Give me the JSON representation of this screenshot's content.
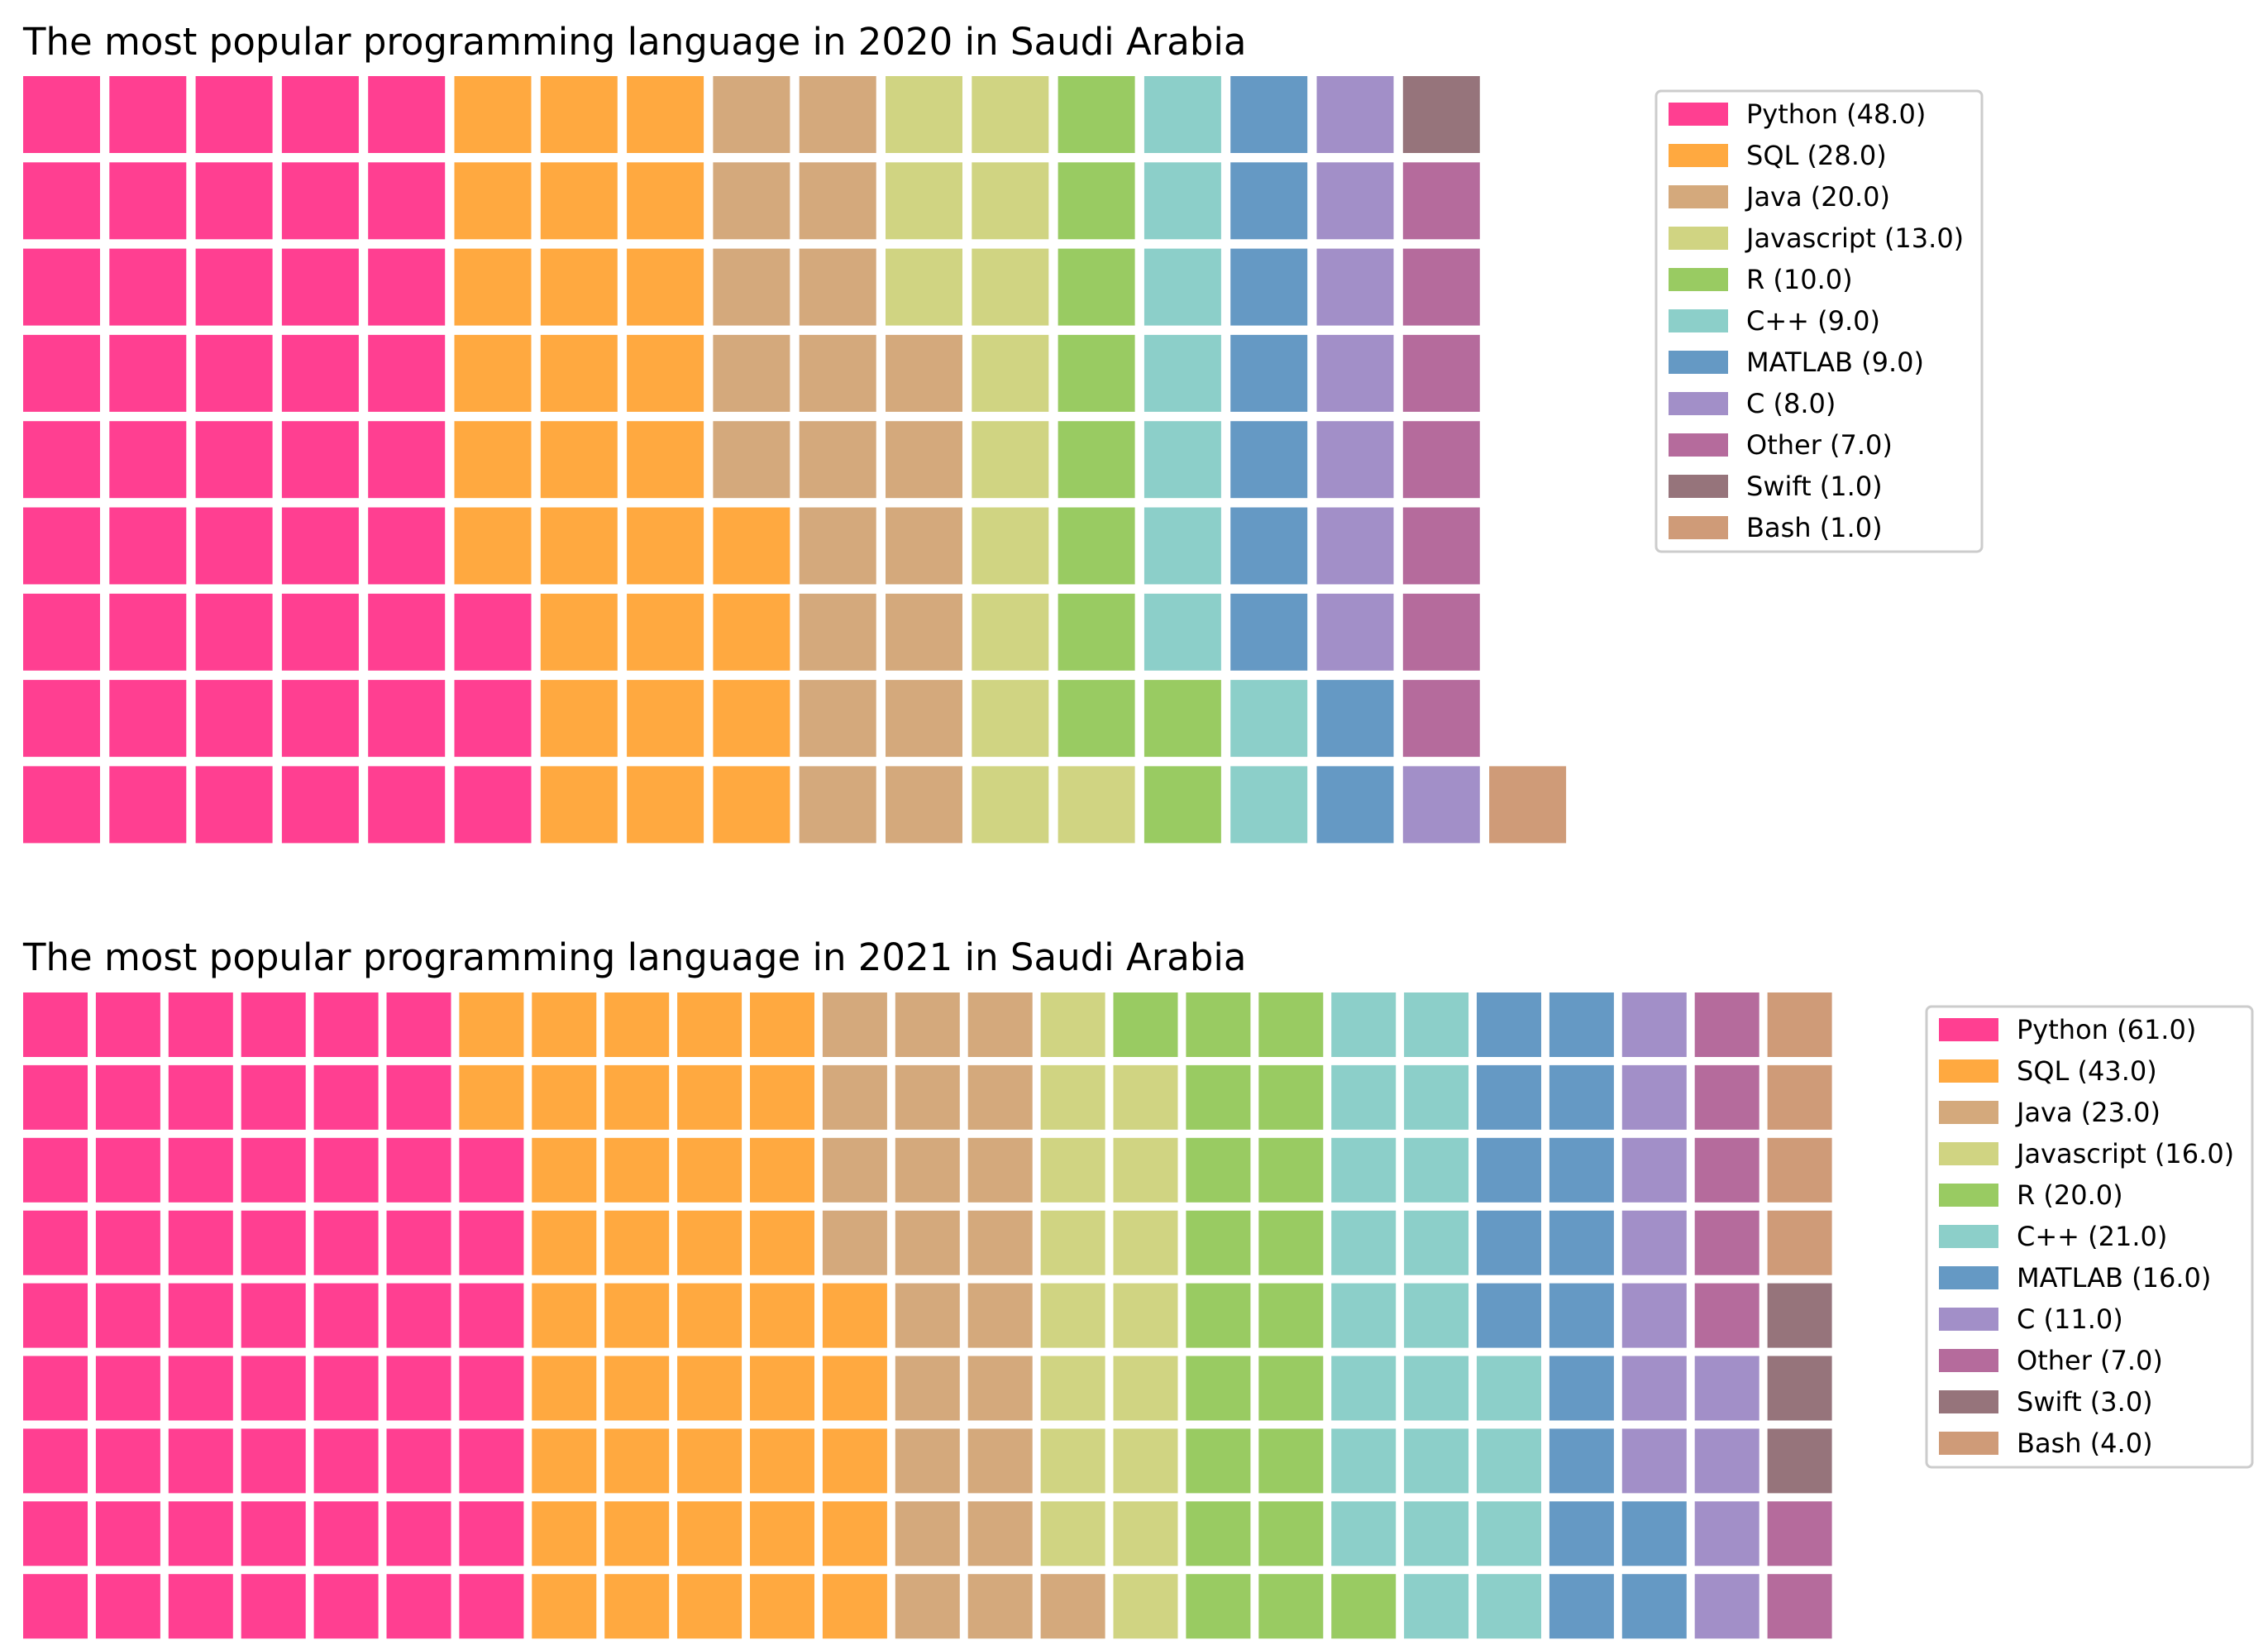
{
  "chart_data": [
    {
      "type": "waffle",
      "title": "The most popular programming language in 2020 in Saudi Arabia",
      "rows": 9,
      "columns": 18,
      "fill_order": "column-major, bottom-to-top, left-to-right",
      "legend_position": "upper-right, outside plot",
      "categories": [
        "Python",
        "SQL",
        "Java",
        "Javascript",
        "R",
        "C++",
        "MATLAB",
        "C",
        "Other",
        "Swift",
        "Bash"
      ],
      "values": [
        48.0,
        28.0,
        20.0,
        13.0,
        10.0,
        9.0,
        9.0,
        8.0,
        7.0,
        1.0,
        1.0
      ],
      "legend_labels": [
        "Python (48.0)",
        "SQL (28.0)",
        "Java (20.0)",
        "Javascript (13.0)",
        "R (10.0)",
        "C++ (9.0)",
        "MATLAB (9.0)",
        "C (8.0)",
        "Other (7.0)",
        "Swift (1.0)",
        "Bash (1.0)"
      ],
      "colors": [
        "#ff3f91",
        "#ffa940",
        "#d4a97c",
        "#d0d482",
        "#99cb62",
        "#8ccfc9",
        "#6599c4",
        "#a28fc8",
        "#b56b9c",
        "#96747b",
        "#cf9b78"
      ]
    },
    {
      "type": "waffle",
      "title": "The most popular programming language in 2021 in Saudi Arabia",
      "rows": 9,
      "columns": 25,
      "fill_order": "column-major, bottom-to-top, left-to-right",
      "legend_position": "upper-right, outside plot",
      "categories": [
        "Python",
        "SQL",
        "Java",
        "Javascript",
        "R",
        "C++",
        "MATLAB",
        "C",
        "Other",
        "Swift",
        "Bash"
      ],
      "values": [
        61.0,
        43.0,
        23.0,
        16.0,
        20.0,
        21.0,
        16.0,
        11.0,
        7.0,
        3.0,
        4.0
      ],
      "legend_labels": [
        "Python (61.0)",
        "SQL (43.0)",
        "Java (23.0)",
        "Javascript (16.0)",
        "R (20.0)",
        "C++ (21.0)",
        "MATLAB (16.0)",
        "C (11.0)",
        "Other (7.0)",
        "Swift (3.0)",
        "Bash (4.0)"
      ],
      "colors": [
        "#ff3f91",
        "#ffa940",
        "#d4a97c",
        "#d0d482",
        "#99cb62",
        "#8ccfc9",
        "#6599c4",
        "#a28fc8",
        "#b56b9c",
        "#96747b",
        "#cf9b78"
      ]
    }
  ]
}
